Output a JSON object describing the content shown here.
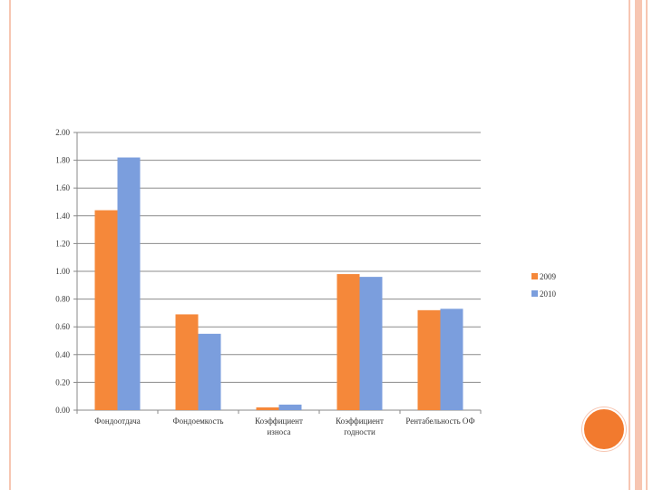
{
  "chart_data": {
    "type": "bar",
    "categories": [
      [
        "Фондоотдача"
      ],
      [
        "Фондоемкость"
      ],
      [
        "Коэффициент",
        "износа"
      ],
      [
        "Коэффициент",
        "годности"
      ],
      [
        "Рентабельность ОФ"
      ]
    ],
    "series": [
      {
        "name": "2009",
        "color": "#f5883a",
        "values": [
          1.44,
          0.69,
          0.02,
          0.98,
          0.72
        ]
      },
      {
        "name": "2010",
        "color": "#7b9edd",
        "values": [
          1.82,
          0.55,
          0.04,
          0.96,
          0.73
        ]
      }
    ],
    "yticks": [
      "0.00",
      "0.20",
      "0.40",
      "0.60",
      "0.80",
      "1.00",
      "1.20",
      "1.40",
      "1.60",
      "1.80",
      "2.00"
    ],
    "ylim": [
      0,
      2.0
    ],
    "grid": true,
    "legend": "right"
  }
}
